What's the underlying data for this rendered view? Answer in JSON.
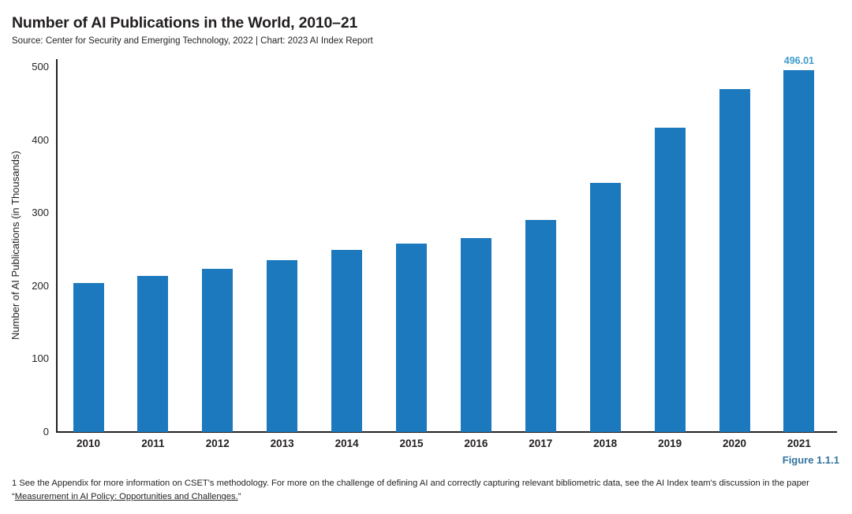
{
  "header": {
    "title": "Number of AI Publications in the World, 2010–21",
    "source_line": "Source: Center for Security and Emerging Technology, 2022 | Chart: 2023 AI Index Report"
  },
  "chart_data": {
    "type": "bar",
    "title": "Number of AI Publications in the World, 2010–21",
    "categories": [
      "2010",
      "2011",
      "2012",
      "2013",
      "2014",
      "2015",
      "2016",
      "2017",
      "2018",
      "2019",
      "2020",
      "2021"
    ],
    "values": [
      204,
      214,
      224,
      235,
      250,
      258,
      266,
      291,
      341,
      417,
      470,
      496.01
    ],
    "xlabel": "",
    "ylabel": "Number of AI Publications (in Thousands)",
    "ylim": [
      0,
      500
    ],
    "yticks": [
      0,
      100,
      200,
      300,
      400,
      500
    ],
    "grid": false,
    "legend": "none",
    "annotation": {
      "category": "2021",
      "label": "496.01"
    }
  },
  "figure_label": "Figure 1.1.1",
  "footnote": {
    "text_before_link": "1 See the Appendix for more information on CSET's methodology. For more on the challenge of defining AI and correctly capturing relevant bibliometric data, see the AI Index team's discussion in the paper “",
    "link_text": "Measurement in AI Policy: Opportunities and Challenges.",
    "text_after_link": "”"
  },
  "colors": {
    "bar": "#1d79bd",
    "annotation": "#3f9bca",
    "figure_label": "#33749f",
    "axis": "#231f20"
  }
}
